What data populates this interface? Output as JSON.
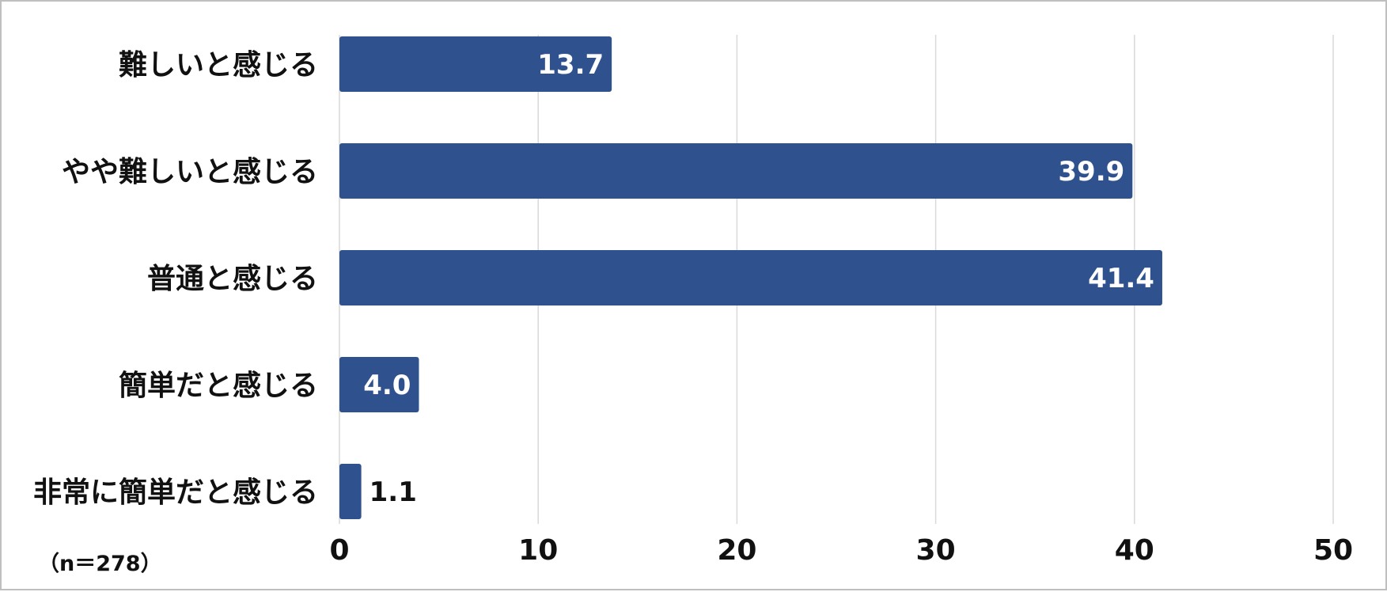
{
  "chart_data": {
    "type": "bar",
    "orientation": "horizontal",
    "categories": [
      "難しいと感じる",
      "やや難しいと感じる",
      "普通と感じる",
      "簡単だと感じる",
      "非常に簡単だと感じる"
    ],
    "values": [
      13.7,
      39.9,
      41.4,
      4.0,
      1.1
    ],
    "value_labels": [
      "13.7",
      "39.9",
      "41.4",
      "4.0",
      "1.1"
    ],
    "xlim": [
      0,
      50
    ],
    "xticks": [
      0,
      10,
      20,
      30,
      40,
      50
    ],
    "xtick_labels": [
      "0",
      "10",
      "20",
      "30",
      "40",
      "50"
    ],
    "grid": "vertical",
    "bar_color": "#2f528f",
    "note": "（n＝278）"
  }
}
